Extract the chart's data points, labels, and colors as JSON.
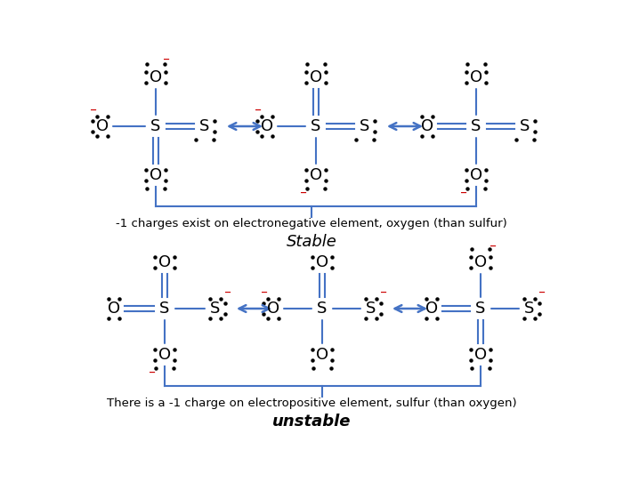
{
  "bg_color": "#ffffff",
  "line_color": "#4472c4",
  "text_color": "#000000",
  "red_color": "#cc0000",
  "arrow_color": "#4472c4",
  "figsize": [
    7.0,
    5.42
  ],
  "dpi": 100,
  "stable_text": "-1 charges exist on electronegative element, oxygen (than sulfur)",
  "stable_label": "Stable",
  "unstable_text": "There is a -1 charge on electropositive element, sulfur (than oxygen)",
  "unstable_label": "unstable"
}
